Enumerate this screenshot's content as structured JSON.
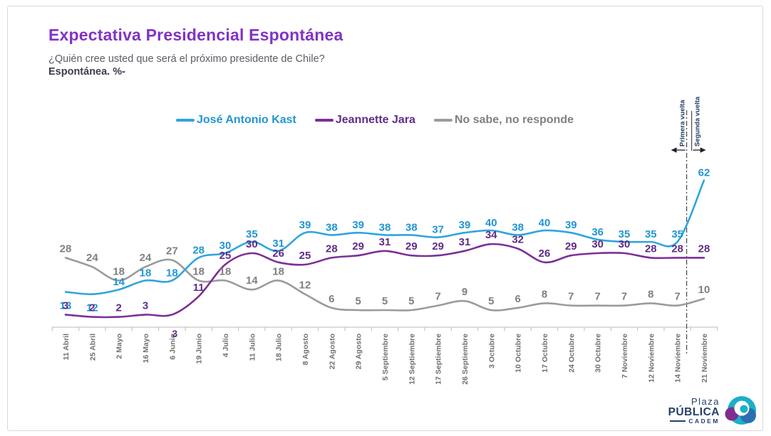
{
  "header": {
    "title": "Expectativa Presidencial Espontánea",
    "question": "¿Quién cree usted que será el próximo presidente de Chile?",
    "subtitle": "Espontánea. %-"
  },
  "colors": {
    "title": "#8232C4",
    "axis": "#c6c6c6",
    "axis_label": "#6e6e6e",
    "annotation": "#1F3864",
    "divider_line": "#3a3a3a"
  },
  "chart_data": {
    "type": "line",
    "title": "Expectativa Presidencial Espontánea",
    "xlabel": "",
    "ylabel": "%",
    "ylim": [
      0,
      70
    ],
    "grid": false,
    "legend_position": "top",
    "categories": [
      "11 Abril",
      "25 Abril",
      "2 Mayo",
      "16 Mayo",
      "6 Junio",
      "19 Junio",
      "4 Julio",
      "11 Julio",
      "18 Julio",
      "8 Agosto",
      "22 Agosto",
      "29 Agosto",
      "5 Septiembre",
      "12 Septiembre",
      "17 Septiembre",
      "26 Septiembre",
      "3 Octubre",
      "10 Octubre",
      "17 Octubre",
      "24 Octubre",
      "30 Octubre",
      "7 Noviembre",
      "12 Noviembre",
      "14 Noviembre",
      "21 Noviembre"
    ],
    "series": [
      {
        "name": "José Antonio Kast",
        "color": "#2FA5DC",
        "label_color": "#2196D3",
        "values": [
          13,
          12,
          14,
          18,
          18,
          28,
          30,
          35,
          31,
          39,
          38,
          39,
          38,
          38,
          37,
          39,
          40,
          38,
          40,
          39,
          36,
          35,
          35,
          35,
          62
        ]
      },
      {
        "name": "Jeannette Jara",
        "color": "#7D2F97",
        "label_color": "#5E2D87",
        "values": [
          3,
          2,
          2,
          3,
          3,
          11,
          25,
          30,
          26,
          25,
          28,
          29,
          31,
          29,
          29,
          31,
          34,
          32,
          26,
          29,
          30,
          30,
          28,
          28,
          28
        ]
      },
      {
        "name": "No sabe, no responde",
        "color": "#9B9B9B",
        "label_color": "#808080",
        "values": [
          28,
          24,
          18,
          24,
          27,
          18,
          18,
          14,
          18,
          12,
          6,
          5,
          5,
          5,
          7,
          9,
          5,
          6,
          8,
          7,
          7,
          7,
          8,
          7,
          10
        ]
      }
    ],
    "divider": {
      "after_category": "14 Noviembre",
      "left_label": "Primera vuelta",
      "right_label": "Segunda vuelta"
    }
  },
  "logo": {
    "line1": "Plaza",
    "line2": "PÚBLICA",
    "line3": "CADEM"
  }
}
